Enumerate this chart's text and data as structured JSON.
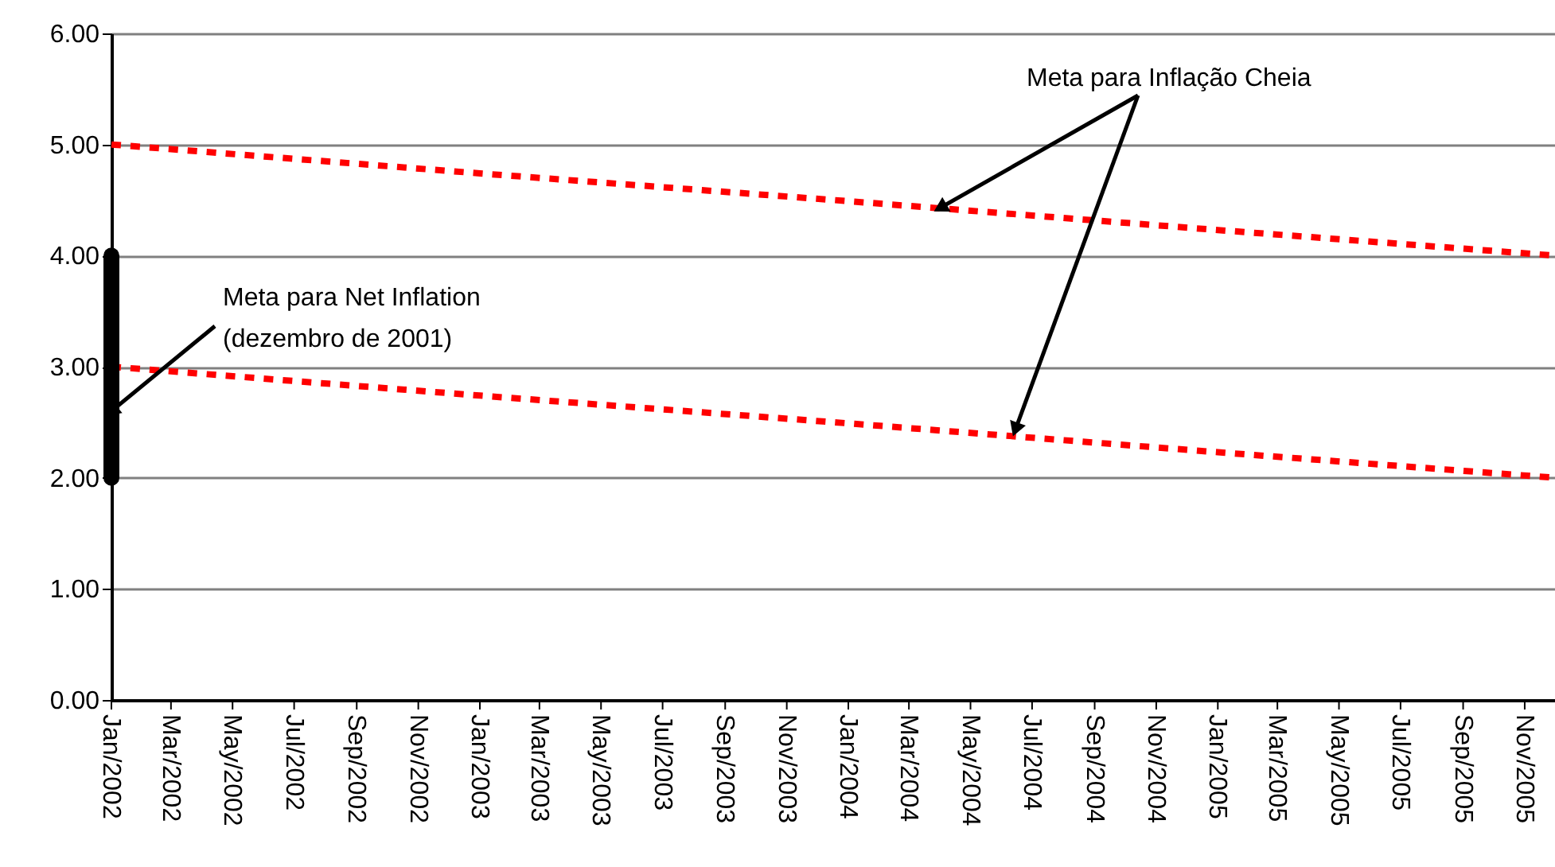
{
  "chart_data": {
    "type": "line",
    "series": [
      {
        "color": "#ff0000",
        "line_style": "dashed",
        "x": [
          "2002-01",
          "2003-01",
          "2004-01",
          "2005-01",
          "2005-12"
        ],
        "values": [
          5.0,
          4.74,
          4.49,
          4.23,
          4.0
        ]
      },
      {
        "color": "#ff0000",
        "line_style": "dashed",
        "x": [
          "2002-01",
          "2003-01",
          "2004-01",
          "2005-01",
          "2005-12"
        ],
        "values": [
          3.0,
          2.74,
          2.49,
          2.23,
          2.0
        ]
      },
      {
        "color": "#000000",
        "line_style": "solid",
        "x": [
          "2002-01",
          "2002-01"
        ],
        "values": [
          2.0,
          4.0
        ]
      }
    ],
    "xlim": [
      "2002-01",
      "2005-12"
    ],
    "xticks": [
      {
        "value": "2002-01",
        "label": "Jan/2002"
      },
      {
        "value": "2002-03",
        "label": "Mar/2002"
      },
      {
        "value": "2002-05",
        "label": "May/2002"
      },
      {
        "value": "2002-07",
        "label": "Jul/2002"
      },
      {
        "value": "2002-09",
        "label": "Sep/2002"
      },
      {
        "value": "2002-11",
        "label": "Nov/2002"
      },
      {
        "value": "2003-01",
        "label": "Jan/2003"
      },
      {
        "value": "2003-03",
        "label": "Mar/2003"
      },
      {
        "value": "2003-05",
        "label": "May/2003"
      },
      {
        "value": "2003-07",
        "label": "Jul/2003"
      },
      {
        "value": "2003-09",
        "label": "Sep/2003"
      },
      {
        "value": "2003-11",
        "label": "Nov/2003"
      },
      {
        "value": "2004-01",
        "label": "Jan/2004"
      },
      {
        "value": "2004-03",
        "label": "Mar/2004"
      },
      {
        "value": "2004-05",
        "label": "May/2004"
      },
      {
        "value": "2004-07",
        "label": "Jul/2004"
      },
      {
        "value": "2004-09",
        "label": "Sep/2004"
      },
      {
        "value": "2004-11",
        "label": "Nov/2004"
      },
      {
        "value": "2005-01",
        "label": "Jan/2005"
      },
      {
        "value": "2005-03",
        "label": "Mar/2005"
      },
      {
        "value": "2005-05",
        "label": "May/2005"
      },
      {
        "value": "2005-07",
        "label": "Jul/2005"
      },
      {
        "value": "2005-09",
        "label": "Sep/2005"
      },
      {
        "value": "2005-11",
        "label": "Nov/2005"
      }
    ],
    "ylim": [
      0,
      6
    ],
    "yticks": [
      {
        "value": 0,
        "label": "0.00"
      },
      {
        "value": 1,
        "label": "1.00"
      },
      {
        "value": 2,
        "label": "2.00"
      },
      {
        "value": 3,
        "label": "3.00"
      },
      {
        "value": 4,
        "label": "4.00"
      },
      {
        "value": 5,
        "label": "5.00"
      },
      {
        "value": 6,
        "label": "6.00"
      }
    ],
    "grid": "y",
    "marker": "none",
    "annotations": [
      {
        "text": "Meta para Inflação Cheia",
        "x": "2004-04",
        "y": 4.43
      },
      {
        "text": "Meta para Net Inflation\n(dezembro de 2001)",
        "x": "2002-01",
        "y": 2.6
      }
    ]
  }
}
